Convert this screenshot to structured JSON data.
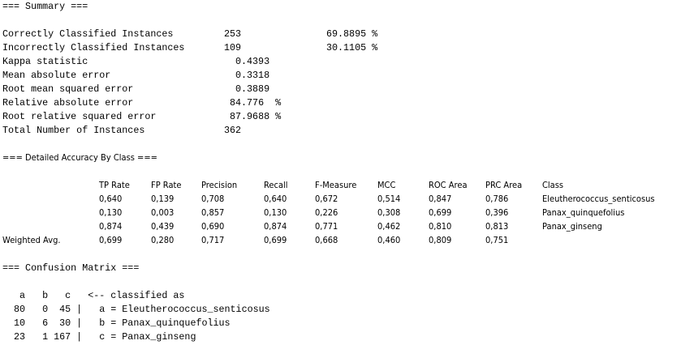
{
  "summary": {
    "title": "=== Summary ===",
    "rows": [
      {
        "label": "Correctly Classified Instances",
        "value": "253",
        "pct": "69.8895 %"
      },
      {
        "label": "Incorrectly Classified Instances",
        "value": "109",
        "pct": "30.1105 %"
      },
      {
        "label": "Kappa statistic",
        "value": "0.4393"
      },
      {
        "label": "Mean absolute error",
        "value": "0.3318"
      },
      {
        "label": "Root mean squared error",
        "value": "0.3889"
      },
      {
        "label": "Relative absolute error",
        "value": "84.776  %"
      },
      {
        "label": "Root relative squared error",
        "value": "87.9688 %"
      },
      {
        "label": "Total Number of Instances",
        "value": "362"
      }
    ]
  },
  "accuracy": {
    "title": "=== Detailed Accuracy By Class ===",
    "headers": [
      "TP Rate",
      "FP Rate",
      "Precision",
      "Recall",
      "F-Measure",
      "MCC",
      "ROC Area",
      "PRC Area",
      "Class"
    ],
    "rows": [
      {
        "label": "",
        "cells": [
          "0,640",
          "0,139",
          "0,708",
          "0,640",
          "0,672",
          "0,514",
          "0,847",
          "0,786",
          "Eleutherococcus_senticosus"
        ]
      },
      {
        "label": "",
        "cells": [
          "0,130",
          "0,003",
          "0,857",
          "0,130",
          "0,226",
          "0,308",
          "0,699",
          "0,396",
          "Panax_quinquefolius"
        ]
      },
      {
        "label": "",
        "cells": [
          "0,874",
          "0,439",
          "0,690",
          "0,874",
          "0,771",
          "0,462",
          "0,810",
          "0,813",
          "Panax_ginseng"
        ]
      },
      {
        "label": "Weighted Avg.",
        "cells": [
          "0,699",
          "0,280",
          "0,717",
          "0,699",
          "0,668",
          "0,460",
          "0,809",
          "0,751",
          ""
        ]
      }
    ]
  },
  "confusion": {
    "title": "=== Confusion Matrix ===",
    "header": "   a   b   c   <-- classified as",
    "rows": [
      "  80   0  45 |   a = Eleutherococcus_senticosus",
      "  10   6  30 |   b = Panax_quinquefolius",
      "  23   1 167 |   c = Panax_ginseng"
    ]
  }
}
